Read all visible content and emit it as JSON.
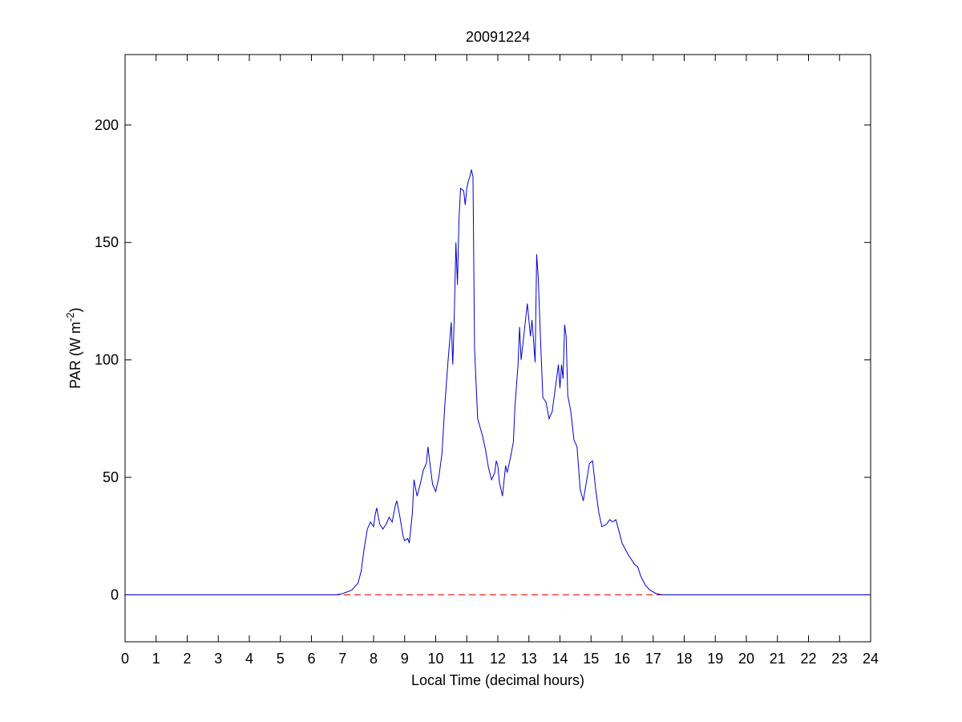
{
  "chart_data": {
    "type": "line",
    "title": "20091224",
    "xlabel": "Local Time (decimal hours)",
    "ylabel": {
      "text": "PAR (W m",
      "superscript": "-2",
      "suffix": ")"
    },
    "xlim": [
      0,
      24
    ],
    "ylim": [
      -20,
      230
    ],
    "xticks": [
      0,
      1,
      2,
      3,
      4,
      5,
      6,
      7,
      8,
      9,
      10,
      11,
      12,
      13,
      14,
      15,
      16,
      17,
      18,
      19,
      20,
      21,
      22,
      23,
      24
    ],
    "yticks": [
      0,
      50,
      100,
      150,
      200
    ],
    "reference_line": {
      "y": 0,
      "color": "#ff0000",
      "style": "dashed"
    },
    "series": [
      {
        "color": "#0000cc",
        "x": [
          0,
          6.8,
          7.0,
          7.3,
          7.5,
          7.6,
          7.7,
          7.8,
          7.9,
          8.0,
          8.05,
          8.1,
          8.2,
          8.3,
          8.4,
          8.5,
          8.6,
          8.7,
          8.75,
          8.85,
          8.95,
          9.0,
          9.1,
          9.15,
          9.25,
          9.3,
          9.4,
          9.5,
          9.6,
          9.7,
          9.75,
          9.85,
          9.9,
          10.0,
          10.1,
          10.2,
          10.3,
          10.4,
          10.45,
          10.5,
          10.55,
          10.6,
          10.65,
          10.7,
          10.75,
          10.8,
          10.9,
          10.95,
          11.0,
          11.05,
          11.1,
          11.15,
          11.2,
          11.25,
          11.35,
          11.5,
          11.6,
          11.7,
          11.8,
          11.9,
          11.95,
          12.0,
          12.05,
          12.15,
          12.25,
          12.3,
          12.4,
          12.5,
          12.55,
          12.65,
          12.7,
          12.75,
          12.85,
          12.95,
          13.05,
          13.1,
          13.2,
          13.25,
          13.3,
          13.4,
          13.45,
          13.55,
          13.65,
          13.75,
          13.85,
          13.95,
          14.0,
          14.05,
          14.1,
          14.15,
          14.2,
          14.25,
          14.35,
          14.45,
          14.55,
          14.65,
          14.75,
          14.85,
          14.95,
          15.05,
          15.15,
          15.25,
          15.35,
          15.5,
          15.6,
          15.7,
          15.8,
          15.9,
          16.0,
          16.2,
          16.4,
          16.5,
          16.6,
          16.75,
          16.9,
          17.1,
          17.3,
          24
        ],
        "values": [
          0,
          0,
          0.5,
          2,
          5,
          10,
          20,
          28,
          31,
          29,
          34,
          37,
          30,
          28,
          30,
          33,
          31,
          38,
          40,
          33,
          25,
          23,
          24,
          22,
          35,
          49,
          42,
          47,
          53,
          56,
          63,
          52,
          47,
          44,
          50,
          60,
          82,
          100,
          108,
          116,
          98,
          120,
          150,
          132,
          160,
          173,
          172,
          166,
          173,
          176,
          178,
          181,
          178,
          105,
          75,
          68,
          62,
          54,
          49,
          52,
          57,
          55,
          48,
          42,
          55,
          52,
          58,
          65,
          80,
          98,
          114,
          100,
          112,
          124,
          110,
          117,
          99,
          145,
          135,
          100,
          84,
          82,
          75,
          78,
          88,
          98,
          88,
          98,
          92,
          115,
          110,
          85,
          78,
          66,
          63,
          45,
          40,
          48,
          56,
          57,
          45,
          35,
          29,
          30,
          32,
          31,
          32,
          27,
          22,
          17,
          13,
          12,
          8,
          4,
          2,
          0.5,
          0,
          0
        ]
      }
    ]
  }
}
